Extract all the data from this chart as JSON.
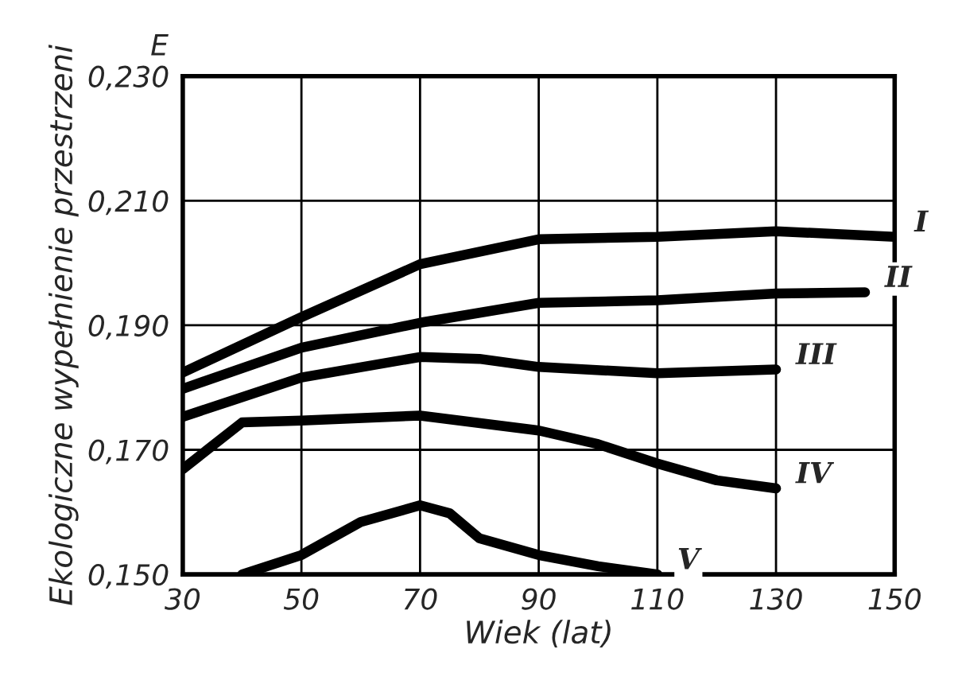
{
  "chart_data": {
    "type": "line",
    "xlabel": "Wiek (lat)",
    "ylabel": "Ekologiczne wypełnienie przestrzeni",
    "annotations": [
      "E"
    ],
    "xlim": [
      30,
      150
    ],
    "xticks": [
      30,
      50,
      70,
      90,
      110,
      130,
      150
    ],
    "ylim": [
      0.15,
      0.23
    ],
    "yticks": [
      {
        "value": 0.15,
        "label": "0,150"
      },
      {
        "value": 0.17,
        "label": "0,170"
      },
      {
        "value": 0.19,
        "label": "0,190"
      },
      {
        "value": 0.21,
        "label": "0,210"
      },
      {
        "value": 0.23,
        "label": "0,230"
      }
    ],
    "grid": true,
    "legend": false,
    "marker": "none",
    "line_style": "solid",
    "series": [
      {
        "name": "I",
        "color": "#000000",
        "x": [
          30,
          50,
          70,
          90,
          110,
          130,
          150
        ],
        "values": [
          0.1824,
          0.1913,
          0.1998,
          0.2038,
          0.2042,
          0.2051,
          0.2042
        ]
      },
      {
        "name": "II",
        "color": "#000000",
        "x": [
          30,
          50,
          70,
          90,
          110,
          130,
          145
        ],
        "values": [
          0.1798,
          0.1864,
          0.1904,
          0.1936,
          0.194,
          0.1951,
          0.1953
        ]
      },
      {
        "name": "III",
        "color": "#000000",
        "x": [
          30,
          50,
          70,
          80,
          90,
          110,
          130
        ],
        "values": [
          0.1753,
          0.1816,
          0.1849,
          0.1846,
          0.1833,
          0.1823,
          0.1829
        ]
      },
      {
        "name": "IV",
        "color": "#000000",
        "x": [
          30,
          40,
          50,
          70,
          90,
          100,
          110,
          120,
          130
        ],
        "values": [
          0.1669,
          0.1744,
          0.1747,
          0.1755,
          0.1731,
          0.1709,
          0.1678,
          0.1651,
          0.1638
        ]
      },
      {
        "name": "V",
        "color": "#000000",
        "x": [
          40,
          50,
          60,
          70,
          75,
          80,
          90,
          100,
          110
        ],
        "values": [
          0.15,
          0.1531,
          0.1584,
          0.1611,
          0.1598,
          0.1558,
          0.1531,
          0.1513,
          0.15
        ]
      }
    ]
  }
}
